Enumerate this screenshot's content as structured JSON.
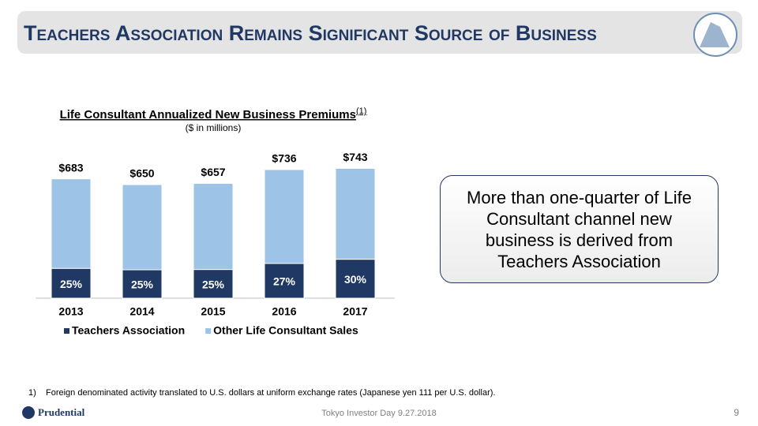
{
  "header": {
    "title": "Teachers Association Remains Significant Source of Business"
  },
  "chart_data": {
    "type": "bar",
    "stacked": true,
    "title": "Life Consultant Annualized New Business Premiums",
    "title_note": "(1)",
    "subtitle": "($ in millions)",
    "categories": [
      "2013",
      "2014",
      "2015",
      "2016",
      "2017"
    ],
    "series": [
      {
        "name": "Teachers Association",
        "color": "#1f3864",
        "values": [
          25,
          25,
          25,
          27,
          30
        ],
        "value_labels": [
          "25%",
          "25%",
          "25%",
          "27%",
          "30%"
        ]
      },
      {
        "name": "Other Life Consultant Sales",
        "color": "#9dc3e6",
        "values": [
          75,
          75,
          75,
          73,
          70
        ]
      }
    ],
    "totals": {
      "values": [
        683,
        650,
        657,
        736,
        743
      ],
      "value_labels": [
        "$683",
        "$650",
        "$657",
        "$736",
        "$743"
      ]
    },
    "legend": "bottom"
  },
  "callout": {
    "text": "More than one-quarter of Life Consultant channel new business is derived from Teachers Association"
  },
  "footnotes": [
    {
      "marker": "1)",
      "text": "Foreign denominated activity translated to U.S. dollars at uniform exchange rates (Japanese yen 111 per U.S. dollar)."
    }
  ],
  "footer": {
    "logo": "Prudential",
    "event": "Tokyo Investor Day 9.27.2018",
    "page": "9"
  }
}
